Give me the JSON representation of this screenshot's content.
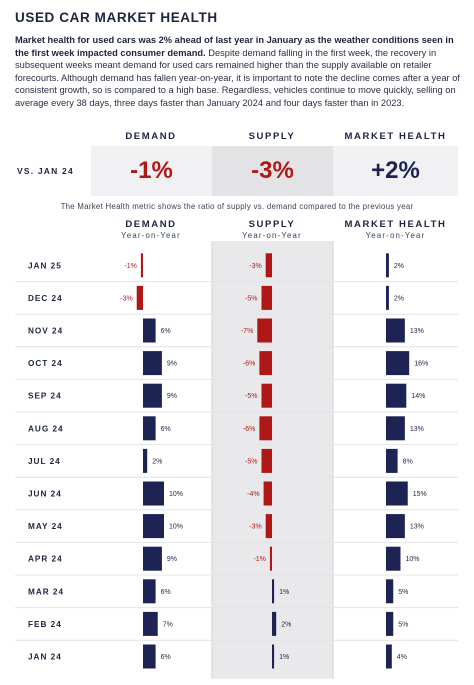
{
  "title": "USED CAR MARKET HEALTH",
  "intro_bold": "Market health for used cars was 2% ahead of last year in January as the weather conditions seen in the first week impacted consumer demand.",
  "intro_rest": " Despite demand falling in the first week, the recovery in subsequent weeks meant demand for used cars remained higher than the supply available on retailer forecourts. Although demand has fallen year-on-year, it is important to note the decline comes after a year of consistent growth, so is compared to a high base. Regardless, vehicles continue to move quickly, selling on average every 38 days, three days faster than January 2024 and four days faster than in 2023.",
  "summary": {
    "label": "VS. JAN 24",
    "headers": [
      "DEMAND",
      "SUPPLY",
      "MARKET HEALTH"
    ],
    "values": [
      "-1%",
      "-3%",
      "+2%"
    ]
  },
  "note": "The Market Health metric shows the ratio of supply vs. demand compared to the previous year",
  "colors": {
    "navy": "#1d2353",
    "red": "#b01818",
    "supply_bg": "#e9e9eb",
    "summary_bg": "#f1f1f3",
    "summary_mid_bg": "#e3e3e6"
  },
  "chart_data": {
    "type": "bar",
    "categories": [
      "JAN 25",
      "DEC 24",
      "NOV 24",
      "OCT 24",
      "SEP 24",
      "AUG 24",
      "JUL 24",
      "JUN 24",
      "MAY 24",
      "APR 24",
      "MAR 24",
      "FEB 24",
      "JAN 24"
    ],
    "series": [
      {
        "name": "DEMAND",
        "subtitle": "Year-on-Year",
        "values": [
          -1,
          -3,
          6,
          9,
          9,
          6,
          2,
          10,
          10,
          9,
          6,
          7,
          6
        ]
      },
      {
        "name": "SUPPLY",
        "subtitle": "Year-on-Year",
        "values": [
          -3,
          -5,
          -7,
          -6,
          -5,
          -6,
          -5,
          -4,
          -3,
          -1,
          1,
          2,
          1
        ]
      },
      {
        "name": "MARKET HEALTH",
        "subtitle": "Year-on-Year",
        "values": [
          2,
          2,
          13,
          16,
          14,
          13,
          8,
          15,
          13,
          10,
          5,
          5,
          4
        ]
      }
    ]
  }
}
